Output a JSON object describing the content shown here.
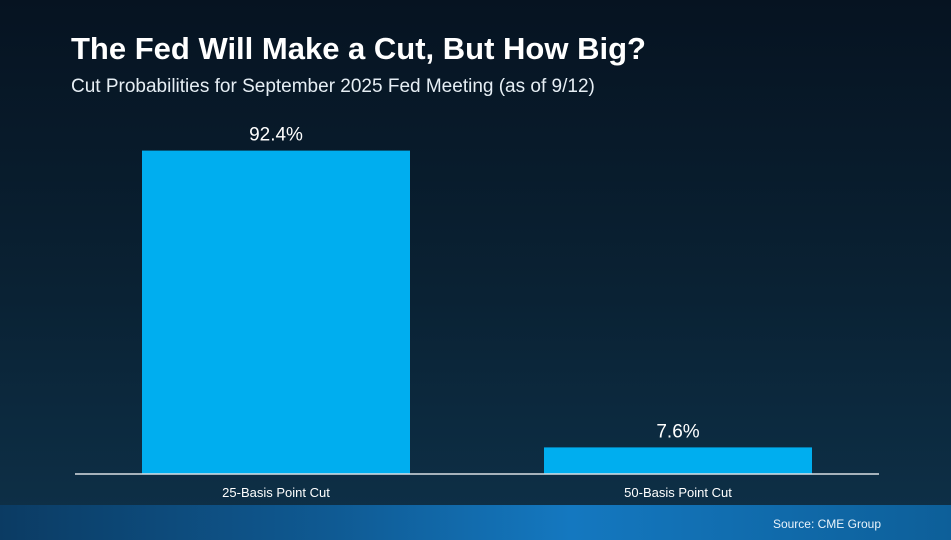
{
  "chart_data": {
    "type": "bar",
    "title": "The Fed Will Make a Cut, But How Big?",
    "subtitle": "Cut Probabilities for September 2025 Fed Meeting (as of 9/12)",
    "categories": [
      "25-Basis Point Cut",
      "50-Basis Point Cut"
    ],
    "values": [
      92.4,
      7.6
    ],
    "value_labels": [
      "92.4%",
      "7.6%"
    ],
    "xlabel": "",
    "ylabel": "",
    "ylim": [
      0,
      100
    ],
    "grid": false,
    "bar_color": "#00aeef",
    "source": "Source: CME Group"
  }
}
